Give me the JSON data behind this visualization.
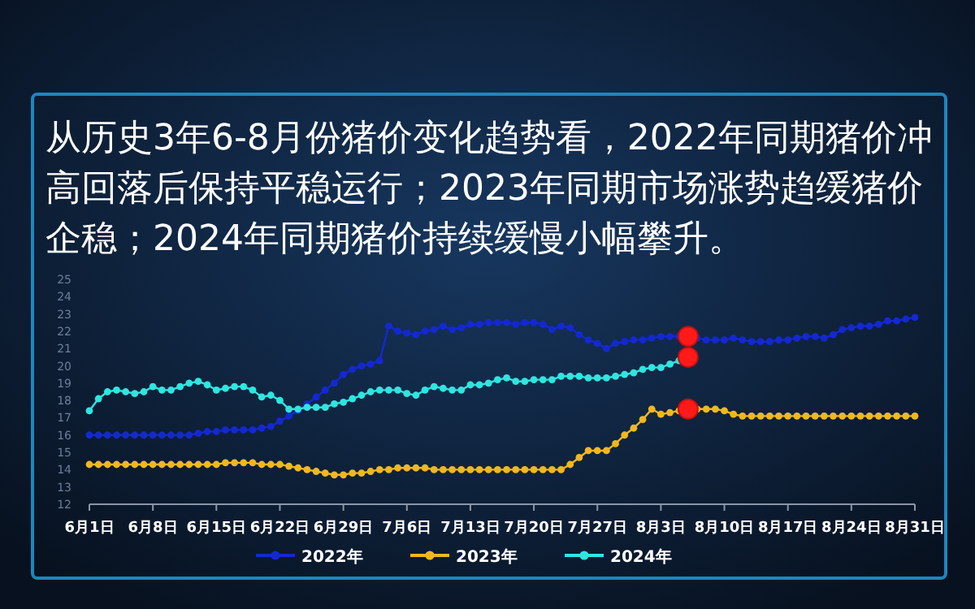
{
  "chart_data": {
    "type": "line",
    "title": "从历史3年6-8月份猪价变化趋势看，2022年同期猪价冲高回落后保持平稳运行；2023年同期市场涨势趋缓猪价企稳；2024年同期猪价持续缓慢小幅攀升。",
    "x": [
      "--06-01",
      "--06-02",
      "--06-03",
      "--06-04",
      "--06-05",
      "--06-06",
      "--06-07",
      "--06-08",
      "--06-09",
      "--06-10",
      "--06-11",
      "--06-12",
      "--06-13",
      "--06-14",
      "--06-15",
      "--06-16",
      "--06-17",
      "--06-18",
      "--06-19",
      "--06-20",
      "--06-21",
      "--06-22",
      "--06-23",
      "--06-24",
      "--06-25",
      "--06-26",
      "--06-27",
      "--06-28",
      "--06-29",
      "--06-30",
      "--07-01",
      "--07-02",
      "--07-03",
      "--07-04",
      "--07-05",
      "--07-06",
      "--07-07",
      "--07-08",
      "--07-09",
      "--07-10",
      "--07-11",
      "--07-12",
      "--07-13",
      "--07-14",
      "--07-15",
      "--07-16",
      "--07-17",
      "--07-18",
      "--07-19",
      "--07-20",
      "--07-21",
      "--07-22",
      "--07-23",
      "--07-24",
      "--07-25",
      "--07-26",
      "--07-27",
      "--07-28",
      "--07-29",
      "--07-30",
      "--07-31",
      "--08-01",
      "--08-02",
      "--08-03",
      "--08-04",
      "--08-05",
      "--08-06",
      "--08-07",
      "--08-08",
      "--08-09",
      "--08-10",
      "--08-11",
      "--08-12",
      "--08-13",
      "--08-14",
      "--08-15",
      "--08-16",
      "--08-17",
      "--08-18",
      "--08-19",
      "--08-20",
      "--08-21",
      "--08-22",
      "--08-23",
      "--08-24",
      "--08-25",
      "--08-26",
      "--08-27",
      "--08-28",
      "--08-29",
      "--08-30",
      "--08-31"
    ],
    "series": [
      {
        "name": "2022年",
        "color": "#1428d2",
        "values": [
          16.0,
          16.0,
          16.0,
          16.0,
          16.0,
          16.0,
          16.0,
          16.0,
          16.0,
          16.0,
          16.0,
          16.0,
          16.1,
          16.2,
          16.2,
          16.3,
          16.3,
          16.3,
          16.3,
          16.4,
          16.5,
          16.8,
          17.1,
          17.4,
          17.8,
          18.2,
          18.6,
          19.0,
          19.5,
          19.8,
          20.0,
          20.1,
          20.3,
          22.3,
          22.0,
          21.9,
          21.8,
          22.0,
          22.1,
          22.3,
          22.1,
          22.2,
          22.4,
          22.4,
          22.5,
          22.5,
          22.5,
          22.4,
          22.5,
          22.5,
          22.4,
          22.1,
          22.3,
          22.2,
          21.8,
          21.5,
          21.3,
          21.0,
          21.3,
          21.4,
          21.5,
          21.5,
          21.6,
          21.7,
          21.7,
          21.7,
          21.7,
          21.6,
          21.5,
          21.5,
          21.5,
          21.6,
          21.5,
          21.4,
          21.4,
          21.4,
          21.5,
          21.5,
          21.6,
          21.7,
          21.7,
          21.6,
          21.8,
          22.1,
          22.2,
          22.3,
          22.3,
          22.4,
          22.6,
          22.6,
          22.7,
          22.8
        ]
      },
      {
        "name": "2023年",
        "color": "#f0b81e",
        "values": [
          14.3,
          14.3,
          14.3,
          14.3,
          14.3,
          14.3,
          14.3,
          14.3,
          14.3,
          14.3,
          14.3,
          14.3,
          14.3,
          14.3,
          14.3,
          14.4,
          14.4,
          14.4,
          14.4,
          14.3,
          14.3,
          14.3,
          14.2,
          14.1,
          14.0,
          13.9,
          13.8,
          13.7,
          13.7,
          13.8,
          13.8,
          13.9,
          14.0,
          14.0,
          14.1,
          14.1,
          14.1,
          14.1,
          14.0,
          14.0,
          14.0,
          14.0,
          14.0,
          14.0,
          14.0,
          14.0,
          14.0,
          14.0,
          14.0,
          14.0,
          14.0,
          14.0,
          14.0,
          14.3,
          14.7,
          15.1,
          15.1,
          15.1,
          15.5,
          16.0,
          16.4,
          16.9,
          17.5,
          17.2,
          17.3,
          17.4,
          17.5,
          17.5,
          17.5,
          17.5,
          17.4,
          17.2,
          17.1,
          17.1,
          17.1,
          17.1,
          17.1,
          17.1,
          17.1,
          17.1,
          17.1,
          17.1,
          17.1,
          17.1,
          17.1,
          17.1,
          17.1,
          17.1,
          17.1,
          17.1,
          17.1,
          17.1
        ]
      },
      {
        "name": "2024年",
        "color": "#2ee6e0",
        "values": [
          17.4,
          18.1,
          18.5,
          18.6,
          18.5,
          18.4,
          18.5,
          18.8,
          18.6,
          18.6,
          18.8,
          19.0,
          19.1,
          18.9,
          18.6,
          18.7,
          18.8,
          18.8,
          18.6,
          18.2,
          18.3,
          18.0,
          17.5,
          17.5,
          17.6,
          17.6,
          17.6,
          17.8,
          17.9,
          18.1,
          18.3,
          18.5,
          18.6,
          18.6,
          18.6,
          18.4,
          18.3,
          18.6,
          18.8,
          18.7,
          18.6,
          18.6,
          18.9,
          18.9,
          19.0,
          19.2,
          19.3,
          19.1,
          19.1,
          19.2,
          19.2,
          19.2,
          19.4,
          19.4,
          19.4,
          19.3,
          19.3,
          19.3,
          19.4,
          19.5,
          19.6,
          19.8,
          19.9,
          19.9,
          20.1,
          20.3,
          20.5,
          null,
          null,
          null,
          null,
          null,
          null,
          null,
          null,
          null,
          null,
          null,
          null,
          null,
          null,
          null,
          null,
          null,
          null,
          null,
          null,
          null,
          null,
          null,
          null,
          null
        ]
      },
      {
        "type": "scatter",
        "color": "#ff1a1a",
        "x": [
          "--08-06",
          "--08-06",
          "--08-06"
        ],
        "values": [
          21.7,
          20.5,
          17.5
        ]
      }
    ],
    "xlim": [
      "--06-01",
      "--08-31"
    ],
    "xticks": [
      {
        "value": "--06-01",
        "label": "6月1日"
      },
      {
        "value": "--06-08",
        "label": "6月8日"
      },
      {
        "value": "--06-15",
        "label": "6月15日"
      },
      {
        "value": "--06-22",
        "label": "6月22日"
      },
      {
        "value": "--06-29",
        "label": "6月29日"
      },
      {
        "value": "--07-06",
        "label": "7月6日"
      },
      {
        "value": "--07-13",
        "label": "7月13日"
      },
      {
        "value": "--07-20",
        "label": "7月20日"
      },
      {
        "value": "--07-27",
        "label": "7月27日"
      },
      {
        "value": "--08-03",
        "label": "8月3日"
      },
      {
        "value": "--08-10",
        "label": "8月10日"
      },
      {
        "value": "--08-17",
        "label": "8月17日"
      },
      {
        "value": "--08-24",
        "label": "8月24日"
      },
      {
        "value": "--08-31",
        "label": "8月31日"
      }
    ],
    "ylim": [
      12,
      25
    ],
    "yticks": [
      12,
      13,
      14,
      15,
      16,
      17,
      18,
      19,
      20,
      21,
      22,
      23,
      24,
      25
    ],
    "legend": "bottom",
    "marker": "circle",
    "line_style": "solid"
  }
}
